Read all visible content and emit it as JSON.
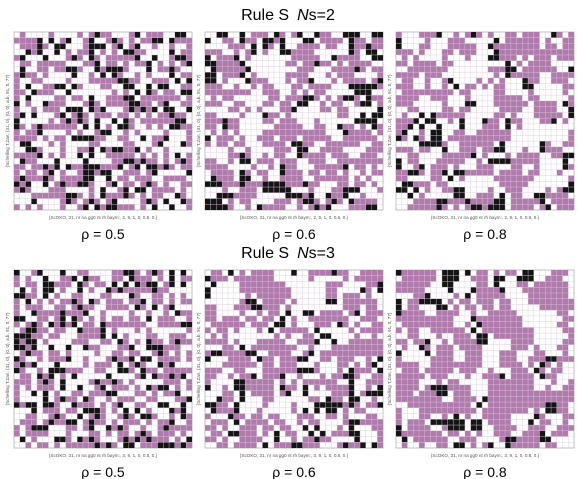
{
  "rows": [
    {
      "title_prefix": "Rule S",
      "title_var": "N",
      "title_suffix": "s=2",
      "panels": [
        {
          "caption": "ρ = 0.5",
          "x_label": "{ScOKO, 31, nr na gg0 nt rh baym:, 2, 9, 1, 0, 0.5, 0.}",
          "y_label": "{Schelling T,Zan, {31, 0}, {0, 0}, a,b, 91, tt, 77}"
        },
        {
          "caption": "ρ = 0.6",
          "x_label": "{ScOKO, 31, nr na gg0 nt rh baym:, 2, 9, 1, 0, 0.6, 0.}",
          "y_label": "{Schelling T,Zan, {31, 0}, {0, 0}, a,b, 91, tt, 77}"
        },
        {
          "caption": "ρ = 0.8",
          "x_label": "{ScOKO, 31, nr na gg0 nt rh baym:, 2, 9, 1, 0, 0.8, 0.}",
          "y_label": "{Schelling T,Zan, {31, 0}, {0, 0}, a,b, 91, tt, 77}"
        }
      ]
    },
    {
      "title_prefix": "Rule S",
      "title_var": "N",
      "title_suffix": "s=3",
      "panels": [
        {
          "caption": "ρ = 0.5",
          "x_label": "{ScOKO, 31, nr na gg0 nt rh baym:, 3, 9, 1, 0, 0.5, 0.}",
          "y_label": "{Schelling T,Zan, {31, 0}, {0, 0}, a,b, 91, tt, 77}"
        },
        {
          "caption": "ρ = 0.6",
          "x_label": "{ScOKO, 31, nr na gg0 nt rh baym:, 3, 9, 1, 0, 0.6, 0.}",
          "y_label": "{Schelling T,Zan, {31, 0}, {0, 0}, a,b, 91, tt, 77}"
        },
        {
          "caption": "ρ = 0.8",
          "x_label": "{ScOKO, 31, nr na gg0 nt rh baym:, 3, 9, 1, 0, 0.8, 0.}",
          "y_label": "{Schelling T,Zan, {31, 0}, {0, 0}, a,b, 91, tt, 77}"
        }
      ]
    }
  ]
}
